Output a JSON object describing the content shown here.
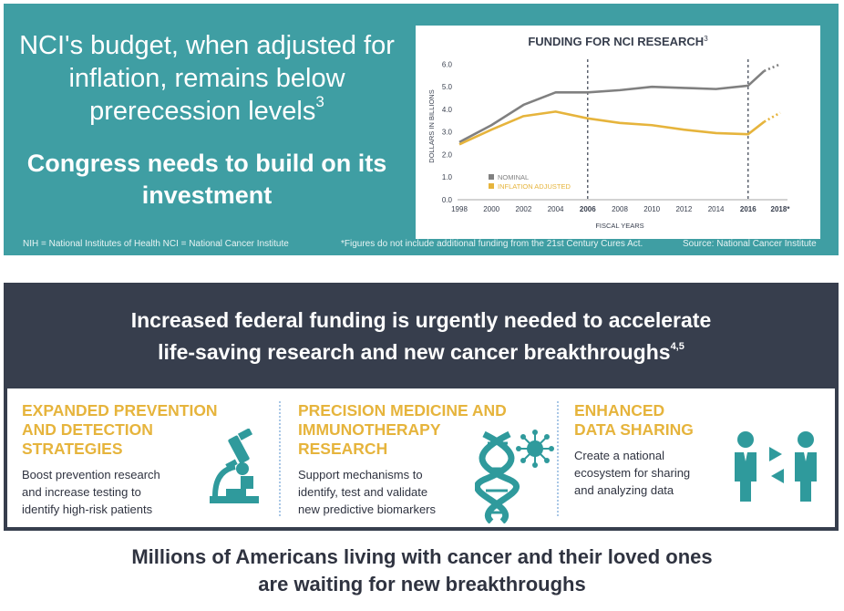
{
  "top": {
    "headline": "NCI's budget, when adjusted for inflation, remains below prerecession levels",
    "headline_sup": "3",
    "subhead": "Congress needs to build on its investment",
    "footnote_left": "NIH = National Institutes of Health   NCI = National Cancer Institute",
    "footnote_mid": "*Figures do not include additional funding from the 21st Century Cures Act.",
    "footnote_right": "Source: National Cancer Institute"
  },
  "chart_data": {
    "type": "line",
    "title": "FUNDING FOR NCI RESEARCH",
    "title_sup": "3",
    "xlabel": "FISCAL YEARS",
    "ylabel": "DOLLARS IN BILLIONS",
    "ylim": [
      0,
      6.5
    ],
    "yticks": [
      "0.0",
      "1.0",
      "2.0",
      "3.0",
      "4.0",
      "5.0",
      "6.0"
    ],
    "x_ticks": [
      "1998",
      "2000",
      "2002",
      "2004",
      "2006",
      "2008",
      "2010",
      "2012",
      "2014",
      "2016",
      "2018*"
    ],
    "x_ticks_bold": [
      "2006",
      "2016",
      "2018*"
    ],
    "x_range": [
      1998,
      2018
    ],
    "reference_lines": [
      2006,
      2016
    ],
    "legend": [
      "NOMINAL",
      "INFLATION ADJUSTED"
    ],
    "series": [
      {
        "name": "NOMINAL",
        "color": "#808080",
        "x": [
          1998,
          2000,
          2002,
          2004,
          2006,
          2008,
          2010,
          2012,
          2014,
          2016,
          2017
        ],
        "y": [
          2.55,
          3.3,
          4.2,
          4.75,
          4.75,
          4.85,
          5.0,
          4.95,
          4.9,
          5.05,
          5.7
        ],
        "projected": {
          "x": [
            2017,
            2018
          ],
          "y": [
            5.7,
            6.0
          ]
        }
      },
      {
        "name": "INFLATION ADJUSTED",
        "color": "#e6b43c",
        "x": [
          1998,
          2000,
          2002,
          2004,
          2006,
          2008,
          2010,
          2012,
          2014,
          2016,
          2017
        ],
        "y": [
          2.45,
          3.1,
          3.7,
          3.9,
          3.6,
          3.4,
          3.3,
          3.1,
          2.95,
          2.9,
          3.45
        ],
        "projected": {
          "x": [
            2017,
            2018
          ],
          "y": [
            3.45,
            3.85
          ]
        }
      }
    ]
  },
  "banner": {
    "title_line1": "Increased federal funding is urgently needed to accelerate",
    "title_line2": "life-saving research and new cancer breakthroughs",
    "title_sup": "4,5"
  },
  "columns": [
    {
      "title_lines": [
        "EXPANDED PREVENTION",
        "AND DETECTION",
        "STRATEGIES"
      ],
      "text_lines": [
        "Boost prevention research",
        "and increase testing to",
        "identify high-risk patients"
      ],
      "icon": "microscope-icon"
    },
    {
      "title_lines": [
        "PRECISION MEDICINE AND",
        "IMMUNOTHERAPY",
        "RESEARCH"
      ],
      "text_lines": [
        "Support mechanisms to",
        "identify, test and validate",
        "new predictive biomarkers"
      ],
      "icon": "dna-virus-icon"
    },
    {
      "title_lines": [
        "ENHANCED",
        "DATA SHARING"
      ],
      "text_lines": [
        "Create a national",
        "ecosystem for sharing",
        "and analyzing data"
      ],
      "icon": "data-exchange-icon"
    }
  ],
  "bottom": {
    "line1": "Millions of Americans living with cancer and their loved ones",
    "line2": "are waiting for new breakthroughs"
  },
  "colors": {
    "teal": "#3f9ea3",
    "navy": "#373e4d",
    "gold": "#e6b43c",
    "gray_line": "#808080",
    "icon_teal": "#2f9a9c"
  }
}
